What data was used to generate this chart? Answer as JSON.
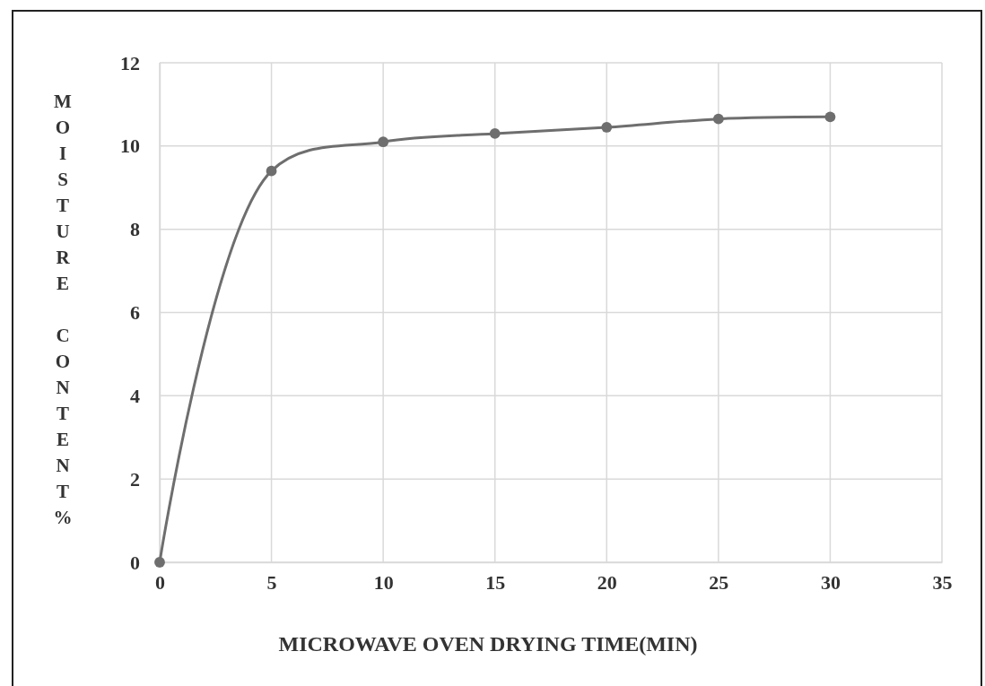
{
  "chart_data": {
    "type": "line",
    "xlabel": "MICROWAVE OVEN DRYING TIME(MIN)",
    "ylabel": "MOISTURE CONTENT%",
    "x": [
      0,
      5,
      10,
      15,
      20,
      25,
      30
    ],
    "series": [
      {
        "color": "#6e6e6e",
        "values": [
          0,
          9.4,
          10.1,
          10.3,
          10.45,
          10.65,
          10.7
        ]
      }
    ],
    "xlim": [
      0,
      35
    ],
    "xticks": [
      0,
      5,
      10,
      15,
      20,
      25,
      30,
      35
    ],
    "ylim": [
      0,
      12
    ],
    "yticks": [
      0,
      2,
      4,
      6,
      8,
      10,
      12
    ],
    "grid": true,
    "marker": "circle",
    "line_style": "solid"
  }
}
